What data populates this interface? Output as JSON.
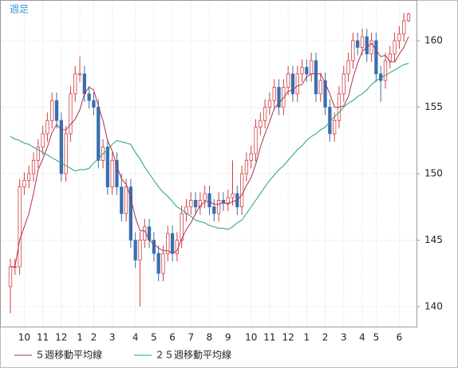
{
  "chart_data": {
    "type": "candlestick",
    "title": "週足",
    "categories": [
      null,
      null,
      null,
      "10",
      null,
      null,
      null,
      "11",
      null,
      null,
      null,
      "12",
      null,
      null,
      null,
      "1",
      null,
      null,
      "2",
      null,
      null,
      null,
      "3",
      null,
      null,
      null,
      null,
      "4",
      null,
      null,
      null,
      "5",
      null,
      null,
      null,
      "6",
      null,
      null,
      null,
      "7",
      null,
      null,
      null,
      "8",
      null,
      null,
      null,
      "9",
      null,
      null,
      null,
      null,
      "10",
      null,
      null,
      null,
      "11",
      null,
      null,
      null,
      "12",
      null,
      null,
      null,
      "1",
      null,
      null,
      null,
      "2",
      null,
      null,
      null,
      "3",
      null,
      null,
      null,
      "4",
      null,
      null,
      "5",
      null,
      null,
      null,
      null,
      "6",
      null,
      null
    ],
    "open": [
      141.5,
      143,
      143,
      149,
      149.5,
      150,
      151,
      152,
      153,
      154,
      155.5,
      154,
      150,
      153,
      156,
      157.5,
      157.5,
      156,
      155.5,
      155,
      151,
      152,
      149,
      151,
      149,
      147,
      149,
      145,
      143.5,
      145,
      146,
      145,
      144,
      142.5,
      144,
      145.5,
      144,
      145,
      147,
      147.5,
      148,
      147.5,
      148,
      148.5,
      147.5,
      147,
      148,
      147.8,
      148.2,
      148.5,
      147.5,
      150,
      151,
      151.5,
      153.5,
      154,
      155,
      155.5,
      156.5,
      155,
      156.5,
      157.5,
      156,
      157.5,
      158,
      157.5,
      158.5,
      156,
      157,
      155,
      153,
      154,
      156,
      157.5,
      158.5,
      160,
      159.5,
      160.3,
      159,
      160,
      157.5,
      157,
      158.5,
      159,
      160,
      160.5,
      161.5
    ],
    "high": [
      143.6,
      143.6,
      149.6,
      150.1,
      150.6,
      151.6,
      152.6,
      153.6,
      154.6,
      156.1,
      156.1,
      154.6,
      153.6,
      156.6,
      158.1,
      158.8,
      158.1,
      156.6,
      156.1,
      155.6,
      152.6,
      152.6,
      151.6,
      151.6,
      150,
      149.6,
      149.6,
      145.6,
      145.6,
      146.6,
      146.6,
      145.6,
      144.6,
      144.6,
      146.1,
      146.1,
      145.6,
      147.6,
      148.1,
      148.6,
      148.6,
      148.6,
      149.1,
      149.1,
      148.1,
      148.6,
      148.6,
      148.8,
      151,
      149.1,
      150.6,
      151.6,
      152.1,
      154.1,
      154.6,
      155.6,
      156.1,
      157.1,
      157.1,
      157.1,
      158.1,
      158.1,
      158.1,
      158.6,
      158.6,
      159.1,
      159.1,
      157.6,
      157.6,
      155.6,
      154.6,
      156.6,
      158.1,
      159.1,
      160.6,
      160.6,
      160.9,
      160.9,
      160.6,
      160.6,
      158.1,
      159.1,
      159.6,
      160.6,
      161.1,
      162.1,
      162.1
    ],
    "low": [
      139.5,
      142.4,
      142.4,
      148.4,
      148.9,
      149.4,
      150.4,
      151.4,
      152.4,
      153.4,
      153.4,
      149.4,
      149.4,
      152.4,
      155.4,
      156.9,
      155.4,
      154.9,
      154.4,
      150.4,
      150.4,
      148.4,
      148.4,
      148.4,
      146.4,
      146.4,
      144.4,
      142.9,
      140,
      144.4,
      144.4,
      143.4,
      141.9,
      141.9,
      143.4,
      143.4,
      143.4,
      144.4,
      146.4,
      146.9,
      146.9,
      146.9,
      147.4,
      146.9,
      146.4,
      146.4,
      147.2,
      147.2,
      147.6,
      146.9,
      146.9,
      149.4,
      150.4,
      150.9,
      152.9,
      153.4,
      154.4,
      154.9,
      154.4,
      154.4,
      155.9,
      155.4,
      155.4,
      156.9,
      156.9,
      156.9,
      155.4,
      155.4,
      154.4,
      152.4,
      152.4,
      153.4,
      155.4,
      156.9,
      157.9,
      158.9,
      158.9,
      158.4,
      158.4,
      156.9,
      155.4,
      156.4,
      157.9,
      158.4,
      159.4,
      159.9,
      161.4
    ],
    "close": [
      143,
      143,
      149,
      149.5,
      150,
      151,
      152,
      153,
      154,
      155.5,
      154,
      150,
      153,
      156,
      157.5,
      157.5,
      156,
      155.5,
      155,
      151,
      152,
      149,
      151,
      149,
      147,
      149,
      145,
      143.5,
      145,
      146,
      145,
      144,
      142.5,
      144,
      145.5,
      144,
      145,
      147,
      147.5,
      148,
      147.5,
      148,
      148.5,
      147.5,
      147,
      148,
      147.8,
      148.2,
      148.5,
      147.5,
      150,
      151,
      151.5,
      153.5,
      154,
      155,
      155.5,
      156.5,
      155,
      156.5,
      157.5,
      156,
      157.5,
      158,
      157.5,
      158.5,
      156,
      157,
      155,
      153,
      154,
      156,
      157.5,
      158.5,
      160,
      159.5,
      160.3,
      159,
      160,
      157.5,
      157,
      158.5,
      159,
      160,
      160.5,
      161.5,
      162
    ],
    "up_color": "#d04040",
    "down_color": "#3a6fb0",
    "series": [
      {
        "name": "５週移動平均線",
        "color": "#b03050",
        "values": [
          143,
          143,
          145,
          146,
          147,
          148.5,
          150.3,
          151.1,
          152,
          153.1,
          153.7,
          153.3,
          153.3,
          153.7,
          154.1,
          154.8,
          156,
          156.5,
          156.3,
          155.1,
          154,
          152.5,
          151.7,
          150.6,
          149.6,
          149.2,
          148.2,
          146.7,
          145.7,
          145.7,
          145,
          144.7,
          144.4,
          144.2,
          144.2,
          144,
          144.2,
          145.1,
          145.8,
          146.3,
          147,
          147.6,
          147.9,
          147.9,
          147.7,
          147.7,
          147.8,
          147.7,
          147.9,
          148,
          148.4,
          149.1,
          149.7,
          150.7,
          152,
          153,
          153.9,
          154.9,
          155.3,
          155.7,
          156.2,
          156.3,
          156.6,
          156.7,
          157.3,
          157.5,
          157.5,
          157.5,
          156.8,
          156,
          155,
          155,
          155.1,
          155.8,
          157.2,
          158.3,
          159.2,
          159.5,
          159.8,
          159.3,
          158.8,
          158.9,
          158.4,
          158.4,
          159,
          159.5,
          160.3
        ]
      },
      {
        "name": "２５週移動平均線",
        "color": "#20a080",
        "values": [
          152.8,
          152.6,
          152.5,
          152.3,
          152.2,
          152,
          151.8,
          151.6,
          151.4,
          151.2,
          151,
          150.8,
          150.6,
          150.4,
          150.2,
          150.3,
          150.3,
          150.4,
          150.8,
          151.1,
          151.5,
          151.8,
          152.2,
          152.5,
          152.4,
          152.3,
          152.2,
          151.6,
          151.1,
          150.5,
          150,
          149.5,
          149,
          148.6,
          148.3,
          147.9,
          147.5,
          147.3,
          147,
          146.8,
          146.5,
          146.4,
          146.3,
          146.1,
          146,
          145.9,
          145.9,
          145.8,
          146,
          146.3,
          146.5,
          147,
          147.5,
          148,
          148.5,
          149,
          149.5,
          149.9,
          150.3,
          150.6,
          151,
          151.4,
          151.8,
          152.1,
          152.5,
          152.8,
          153,
          153.3,
          153.5,
          153.9,
          154.3,
          154.6,
          155,
          155.3,
          155.5,
          155.8,
          156,
          156.3,
          156.7,
          157,
          157.2,
          157.4,
          157.6,
          157.8,
          158,
          158.2,
          158.3
        ]
      }
    ],
    "ylim": [
      138.5,
      163
    ],
    "yticks": [
      140,
      145,
      150,
      155,
      160
    ],
    "grid": true
  }
}
